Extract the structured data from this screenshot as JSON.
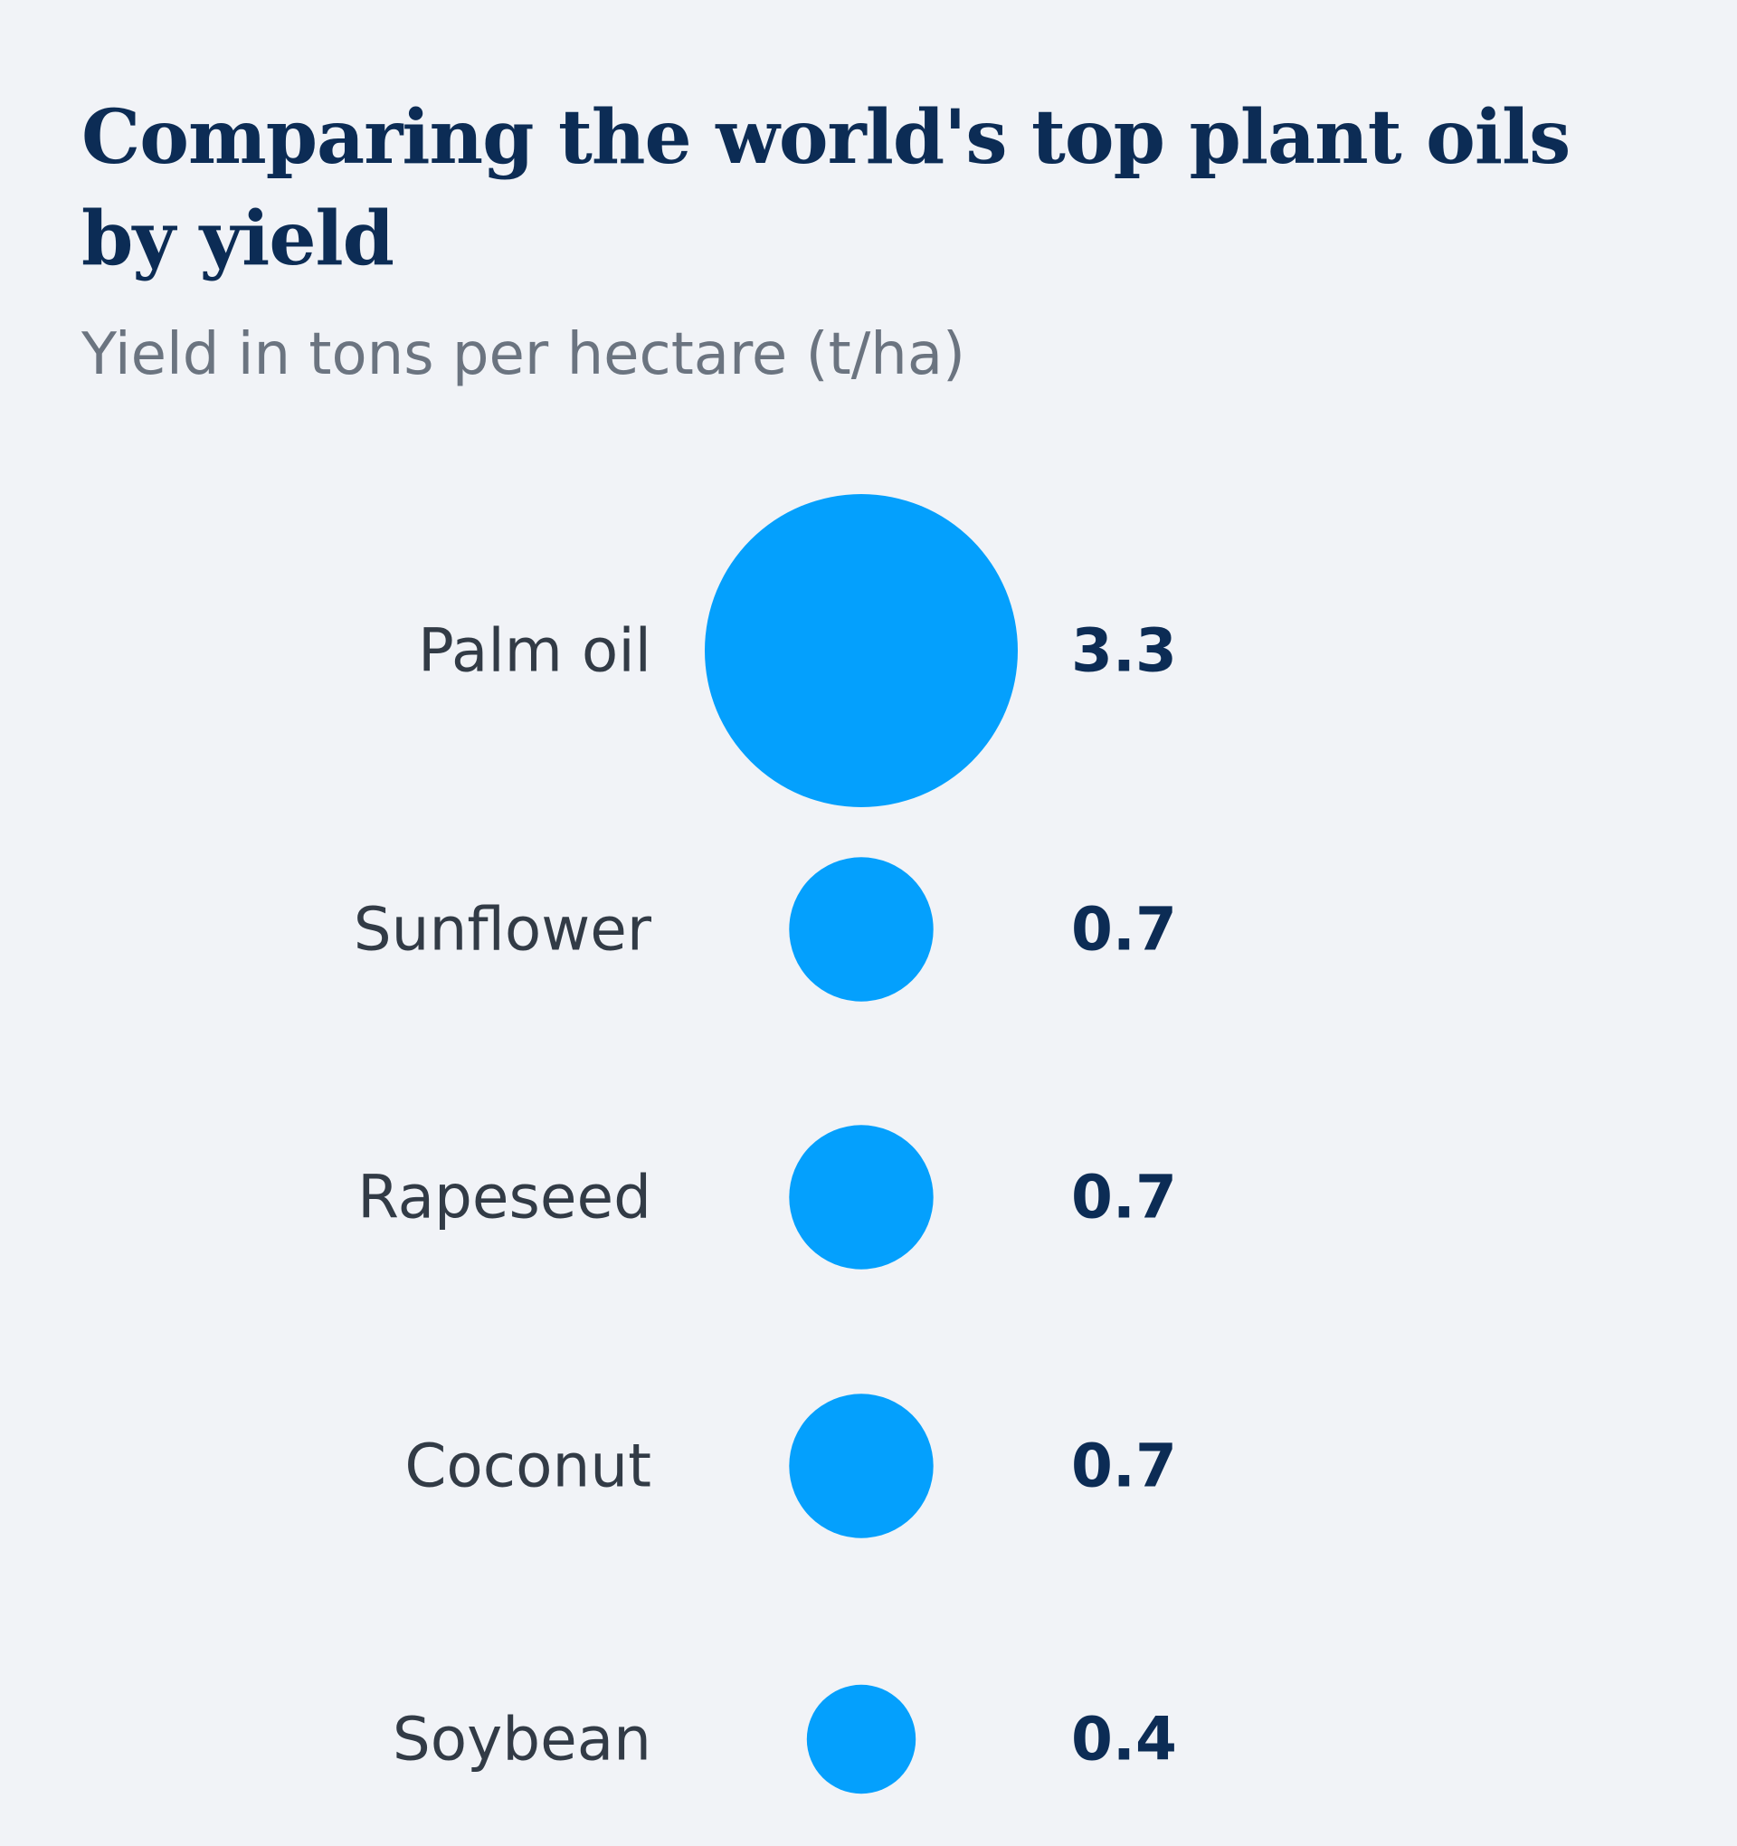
{
  "chart_data": {
    "type": "bubble",
    "title": "Comparing the world's top plant oils by yield",
    "subtitle": "Yield in tons per hectare (t/ha)",
    "unit": "t/ha",
    "categories": [
      "Palm oil",
      "Sunflower",
      "Rapeseed",
      "Coconut",
      "Soybean"
    ],
    "values": [
      3.3,
      0.7,
      0.7,
      0.7,
      0.4
    ],
    "value_labels": [
      "3.3",
      "0.7",
      "0.7",
      "0.7",
      "0.4"
    ],
    "encoding": "bubble area proportional to value",
    "colors": {
      "bubble": "#04a0fd",
      "value_text": "#0c2c55",
      "label_text": "#323b46",
      "background": "#f1f3f7"
    }
  }
}
